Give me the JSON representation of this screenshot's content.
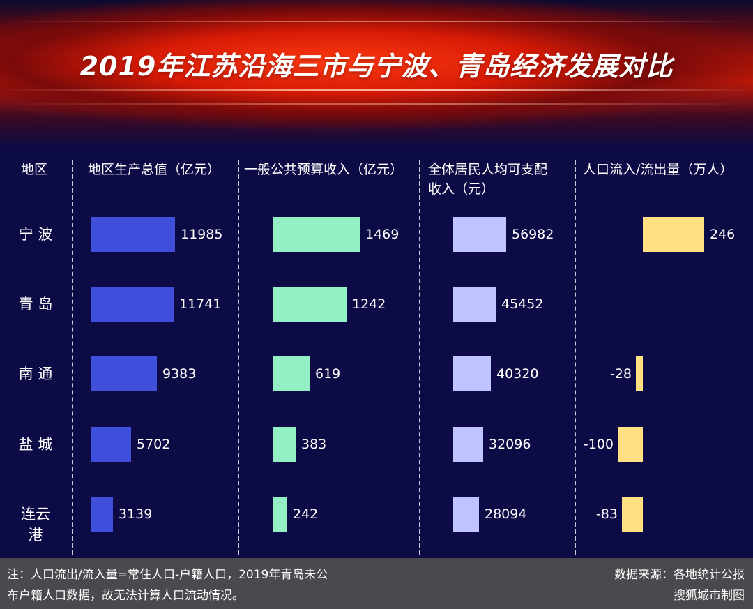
{
  "title": "2019年江苏沿海三市与宁波、青岛经济发展对比",
  "chart_data": {
    "type": "bar",
    "title": "2019年江苏沿海三市与宁波、青岛经济发展对比",
    "row_header": "地区",
    "categories": [
      "宁 波",
      "青 岛",
      "南 通",
      "盐 城",
      "连云港"
    ],
    "series": [
      {
        "name": "地区生产总值（亿元）",
        "values": [
          11985,
          11741,
          9383,
          5702,
          3139
        ],
        "labels": [
          "11985",
          "11741",
          "9383",
          "5702",
          "3139"
        ],
        "color": "#3f4fdc"
      },
      {
        "name": "一般公共预算收入（亿元）",
        "values": [
          1469,
          1242,
          619,
          383,
          242
        ],
        "labels": [
          "1469",
          "1242",
          "619",
          "383",
          "242"
        ],
        "color": "#93f0c4"
      },
      {
        "name_lines": [
          "全体居民人均可支配",
          "收入（元）"
        ],
        "values": [
          56982,
          45452,
          40320,
          32096,
          28094
        ],
        "labels": [
          "56982",
          "45452",
          "40320",
          "32096",
          "28094"
        ],
        "color": "#bfc3ff"
      },
      {
        "name": "人口流入/流出量（万人）",
        "values": [
          246,
          null,
          -28,
          -100,
          -83
        ],
        "labels": [
          "246",
          "",
          "-28",
          "-100",
          "-83"
        ],
        "color": "#ffe184"
      }
    ]
  },
  "footer": {
    "note_lines": [
      "注：人口流出/流入量=常住人口-户籍人口，2019年青岛未公",
      "布户籍人口数据，故无法计算人口流动情况。"
    ],
    "source": "数据来源：各地统计公报",
    "credit": "搜狐城市制图"
  }
}
